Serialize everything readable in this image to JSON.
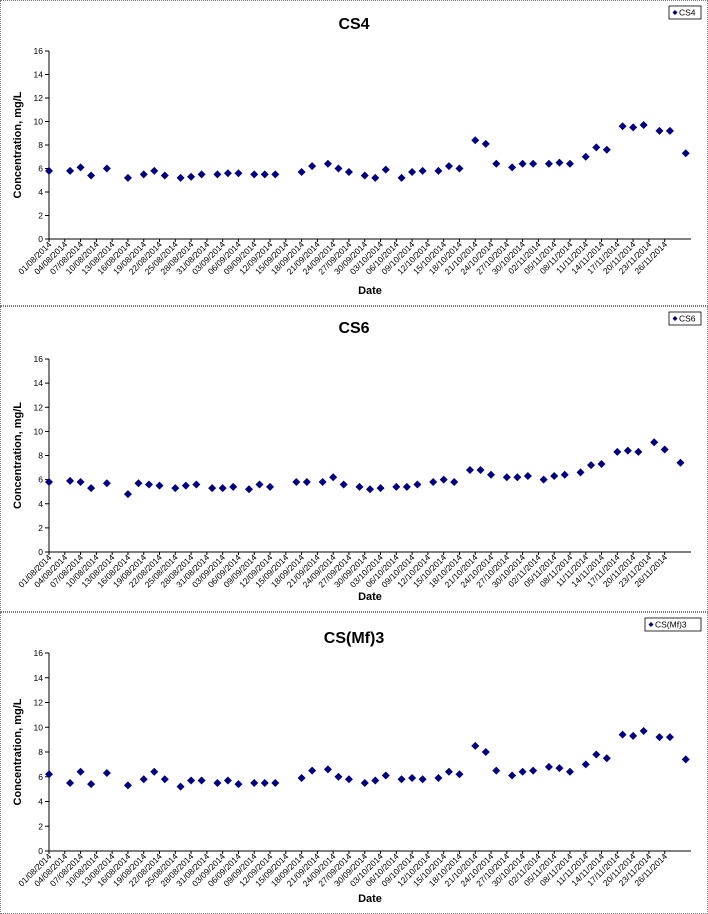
{
  "chart_data": [
    {
      "type": "scatter",
      "title": "CS4",
      "xlabel": "Date",
      "ylabel": "Concentration, mg/L",
      "ylim": [
        0,
        16
      ],
      "yticks": [
        0,
        2,
        4,
        6,
        8,
        10,
        12,
        14,
        16
      ],
      "xlim": [
        "01/08/2014",
        "01/12/2014"
      ],
      "xtick_labels": [
        "01/08/2014",
        "04/08/2014",
        "07/08/2014",
        "10/08/2014",
        "13/08/2014",
        "16/08/2014",
        "19/08/2014",
        "22/08/2014",
        "25/08/2014",
        "28/08/2014",
        "31/08/2014",
        "03/09/2014",
        "06/09/2014",
        "09/09/2014",
        "12/09/2014",
        "15/09/2014",
        "18/09/2014",
        "21/09/2014",
        "24/09/2014",
        "27/09/2014",
        "30/09/2014",
        "03/10/2014",
        "06/10/2014",
        "09/10/2014",
        "12/10/2014",
        "15/10/2014",
        "18/10/2014",
        "21/10/2014",
        "24/10/2014",
        "27/10/2014",
        "30/10/2014",
        "02/11/2014",
        "05/11/2014",
        "08/11/2014",
        "11/11/2014",
        "14/11/2014",
        "17/11/2014",
        "20/11/2014",
        "23/11/2014",
        "26/11/2014"
      ],
      "grid": false,
      "legend_position": "top-right",
      "color": "#000080",
      "series": [
        {
          "name": "CS4",
          "x": [
            "01/08/2014",
            "05/08/2014",
            "07/08/2014",
            "09/08/2014",
            "12/08/2014",
            "16/08/2014",
            "19/08/2014",
            "21/08/2014",
            "23/08/2014",
            "26/08/2014",
            "28/08/2014",
            "30/08/2014",
            "02/09/2014",
            "04/09/2014",
            "06/09/2014",
            "09/09/2014",
            "11/09/2014",
            "13/09/2014",
            "18/09/2014",
            "20/09/2014",
            "23/09/2014",
            "25/09/2014",
            "27/09/2014",
            "30/09/2014",
            "02/10/2014",
            "04/10/2014",
            "07/10/2014",
            "09/10/2014",
            "11/10/2014",
            "14/10/2014",
            "16/10/2014",
            "18/10/2014",
            "21/10/2014",
            "23/10/2014",
            "25/10/2014",
            "28/10/2014",
            "30/10/2014",
            "01/11/2014",
            "04/11/2014",
            "06/11/2014",
            "08/11/2014",
            "11/11/2014",
            "13/11/2014",
            "15/11/2014",
            "18/11/2014",
            "20/11/2014",
            "22/11/2014",
            "25/11/2014",
            "27/11/2014",
            "30/11/2014"
          ],
          "y": [
            5.8,
            5.8,
            6.1,
            5.4,
            6.0,
            5.2,
            5.5,
            5.8,
            5.4,
            5.2,
            5.3,
            5.5,
            5.5,
            5.6,
            5.6,
            5.5,
            5.5,
            5.5,
            5.7,
            6.2,
            6.4,
            6.0,
            5.7,
            5.4,
            5.2,
            5.9,
            5.2,
            5.7,
            5.8,
            5.8,
            6.2,
            6.0,
            8.4,
            8.1,
            6.4,
            6.1,
            6.4,
            6.4,
            6.4,
            6.5,
            6.4,
            7.0,
            7.8,
            7.6,
            9.6,
            9.5,
            9.7,
            9.2,
            9.2,
            7.3
          ]
        }
      ]
    },
    {
      "type": "scatter",
      "title": "CS6",
      "xlabel": "Date",
      "ylabel": "Concentration, mg/L",
      "ylim": [
        0,
        16
      ],
      "yticks": [
        0,
        2,
        4,
        6,
        8,
        10,
        12,
        14,
        16
      ],
      "xlim": [
        "01/08/2014",
        "01/12/2014"
      ],
      "xtick_labels": [
        "01/08/2014",
        "04/08/2014",
        "07/08/2014",
        "10/08/2014",
        "13/08/2014",
        "16/08/2014",
        "19/08/2014",
        "22/08/2014",
        "25/08/2014",
        "28/08/2014",
        "31/08/2014",
        "03/09/2014",
        "06/09/2014",
        "09/09/2014",
        "12/09/2014",
        "15/09/2014",
        "18/09/2014",
        "21/09/2014",
        "24/09/2014",
        "27/09/2014",
        "30/09/2014",
        "03/10/2014",
        "06/10/2014",
        "09/10/2014",
        "12/10/2014",
        "15/10/2014",
        "18/10/2014",
        "21/10/2014",
        "24/10/2014",
        "27/10/2014",
        "30/10/2014",
        "02/11/2014",
        "05/11/2014",
        "08/11/2014",
        "11/11/2014",
        "14/11/2014",
        "17/11/2014",
        "20/11/2014",
        "23/11/2014",
        "26/11/2014"
      ],
      "grid": false,
      "legend_position": "top-right",
      "color": "#000080",
      "series": [
        {
          "name": "CS6",
          "x": [
            "01/08/2014",
            "05/08/2014",
            "07/08/2014",
            "09/08/2014",
            "12/08/2014",
            "16/08/2014",
            "18/08/2014",
            "20/08/2014",
            "22/08/2014",
            "25/08/2014",
            "27/08/2014",
            "29/08/2014",
            "01/09/2014",
            "03/09/2014",
            "05/09/2014",
            "08/09/2014",
            "10/09/2014",
            "12/09/2014",
            "17/09/2014",
            "19/09/2014",
            "22/09/2014",
            "24/09/2014",
            "26/09/2014",
            "29/09/2014",
            "01/10/2014",
            "03/10/2014",
            "06/10/2014",
            "08/10/2014",
            "10/10/2014",
            "13/10/2014",
            "15/10/2014",
            "17/10/2014",
            "20/10/2014",
            "22/10/2014",
            "24/10/2014",
            "27/10/2014",
            "29/10/2014",
            "31/10/2014",
            "03/11/2014",
            "05/11/2014",
            "07/11/2014",
            "10/11/2014",
            "12/11/2014",
            "14/11/2014",
            "17/11/2014",
            "19/11/2014",
            "21/11/2014",
            "24/11/2014",
            "26/11/2014",
            "29/11/2014"
          ],
          "y": [
            5.8,
            5.9,
            5.8,
            5.3,
            5.7,
            4.8,
            5.7,
            5.6,
            5.5,
            5.3,
            5.5,
            5.6,
            5.3,
            5.3,
            5.4,
            5.2,
            5.6,
            5.4,
            5.8,
            5.8,
            5.8,
            6.2,
            5.6,
            5.4,
            5.2,
            5.3,
            5.4,
            5.4,
            5.6,
            5.8,
            6.0,
            5.8,
            6.8,
            6.8,
            6.4,
            6.2,
            6.2,
            6.3,
            6.0,
            6.3,
            6.4,
            6.6,
            7.2,
            7.3,
            8.3,
            8.4,
            8.3,
            9.1,
            8.5,
            7.4
          ]
        }
      ]
    },
    {
      "type": "scatter",
      "title": "CS(Mf)3",
      "xlabel": "Date",
      "ylabel": "Concentration, mg/L",
      "ylim": [
        0,
        16
      ],
      "yticks": [
        0,
        2,
        4,
        6,
        8,
        10,
        12,
        14,
        16
      ],
      "xlim": [
        "01/08/2014",
        "01/12/2014"
      ],
      "xtick_labels": [
        "01/08/2014",
        "04/08/2014",
        "07/08/2014",
        "10/08/2014",
        "13/08/2014",
        "16/08/2014",
        "19/08/2014",
        "22/08/2014",
        "25/08/2014",
        "28/08/2014",
        "31/08/2014",
        "03/09/2014",
        "06/09/2014",
        "09/09/2014",
        "12/09/2014",
        "15/09/2014",
        "18/09/2014",
        "21/09/2014",
        "24/09/2014",
        "27/09/2014",
        "30/09/2014",
        "03/10/2014",
        "06/10/2014",
        "09/10/2014",
        "12/10/2014",
        "15/10/2014",
        "18/10/2014",
        "21/10/2014",
        "24/10/2014",
        "27/10/2014",
        "30/10/2014",
        "02/11/2014",
        "05/11/2014",
        "08/11/2014",
        "11/11/2014",
        "14/11/2014",
        "17/11/2014",
        "20/11/2014",
        "23/11/2014",
        "26/11/2014"
      ],
      "grid": false,
      "legend_position": "top-right",
      "color": "#000080",
      "series": [
        {
          "name": "CS(Mf)3",
          "x": [
            "01/08/2014",
            "05/08/2014",
            "07/08/2014",
            "09/08/2014",
            "12/08/2014",
            "16/08/2014",
            "19/08/2014",
            "21/08/2014",
            "23/08/2014",
            "26/08/2014",
            "28/08/2014",
            "30/08/2014",
            "02/09/2014",
            "04/09/2014",
            "06/09/2014",
            "09/09/2014",
            "11/09/2014",
            "13/09/2014",
            "18/09/2014",
            "20/09/2014",
            "23/09/2014",
            "25/09/2014",
            "27/09/2014",
            "30/09/2014",
            "02/10/2014",
            "04/10/2014",
            "07/10/2014",
            "09/10/2014",
            "11/10/2014",
            "14/10/2014",
            "16/10/2014",
            "18/10/2014",
            "21/10/2014",
            "23/10/2014",
            "25/10/2014",
            "28/10/2014",
            "30/10/2014",
            "01/11/2014",
            "04/11/2014",
            "06/11/2014",
            "08/11/2014",
            "11/11/2014",
            "13/11/2014",
            "15/11/2014",
            "18/11/2014",
            "20/11/2014",
            "22/11/2014",
            "25/11/2014",
            "27/11/2014",
            "30/11/2014"
          ],
          "y": [
            6.2,
            5.5,
            6.4,
            5.4,
            6.3,
            5.3,
            5.8,
            6.4,
            5.8,
            5.2,
            5.7,
            5.7,
            5.5,
            5.7,
            5.4,
            5.5,
            5.5,
            5.5,
            5.9,
            6.5,
            6.6,
            6.0,
            5.8,
            5.5,
            5.7,
            6.1,
            5.8,
            5.9,
            5.8,
            5.9,
            6.4,
            6.2,
            8.5,
            8.0,
            6.5,
            6.1,
            6.4,
            6.5,
            6.8,
            6.7,
            6.4,
            7.0,
            7.8,
            7.5,
            9.4,
            9.3,
            9.7,
            9.2,
            9.2,
            7.4
          ]
        }
      ]
    }
  ]
}
